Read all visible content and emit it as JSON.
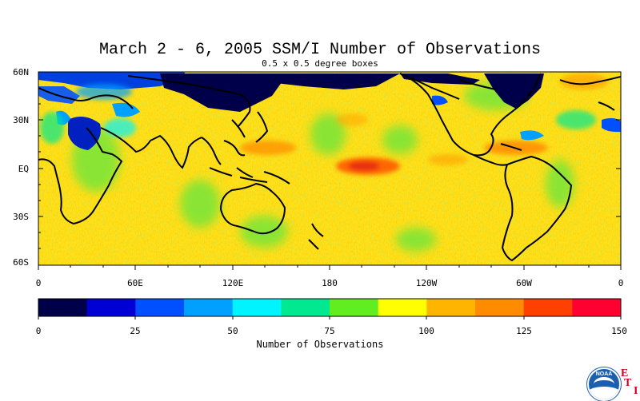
{
  "title": "March 2 - 6, 2005 SSM/I Number of Observations",
  "subtitle": "0.5 x 0.5 degree boxes",
  "map": {
    "lat_labels": [
      "60N",
      "30N",
      "EQ",
      "30S",
      "60S"
    ],
    "lon_labels": [
      "0",
      "60E",
      "120E",
      "180",
      "120W",
      "60W",
      "0"
    ],
    "lat_range": [
      -60,
      60
    ],
    "lon_range": [
      0,
      360
    ]
  },
  "colorbar": {
    "title": "Number of Observations",
    "tick_labels": [
      "0",
      "25",
      "50",
      "75",
      "100",
      "125",
      "150"
    ],
    "range": [
      0,
      150
    ],
    "colors": [
      "#00004a",
      "#0000d4",
      "#0050ff",
      "#00a0ff",
      "#00f4ff",
      "#00e890",
      "#60ee20",
      "#ffff00",
      "#ffb400",
      "#ff8c00",
      "#ff4000",
      "#ff0030"
    ]
  },
  "logos": {
    "noaa_text": "NOAA",
    "eti_letters": [
      "E",
      "T",
      "I"
    ],
    "colors": {
      "noaa": "#1c5fae",
      "eti": "#d0021b"
    }
  }
}
